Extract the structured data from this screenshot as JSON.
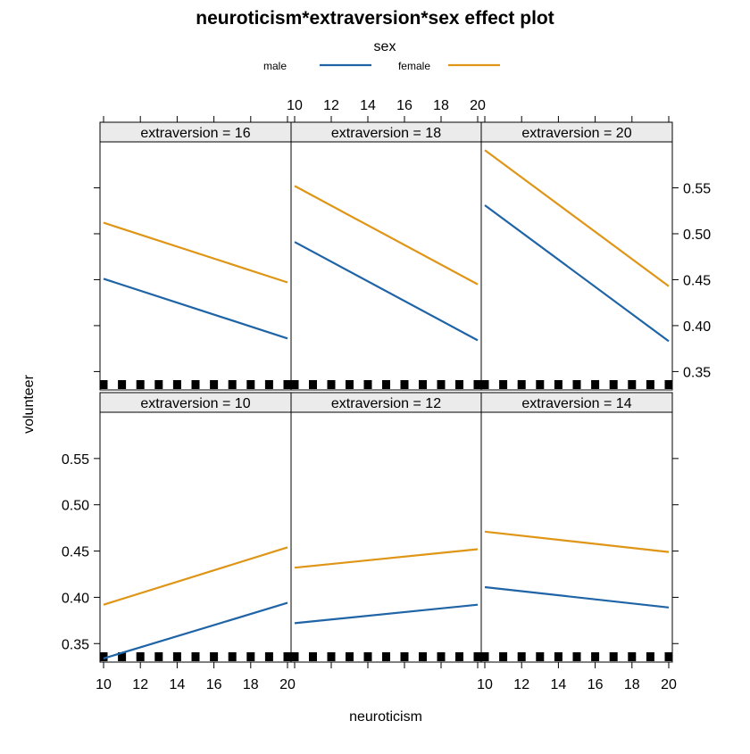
{
  "chart_data": {
    "type": "line",
    "title": "neuroticism*extraversion*sex effect plot",
    "xlabel": "neuroticism",
    "ylabel": "volunteer",
    "xlim": [
      10,
      20
    ],
    "ylim": [
      0.33,
      0.6
    ],
    "x_ticks": [
      10,
      12,
      14,
      16,
      18,
      20
    ],
    "x_tick_labels": [
      "10",
      "12",
      "14",
      "16",
      "18",
      "20"
    ],
    "y_ticks": [
      0.35,
      0.4,
      0.45,
      0.5,
      0.55
    ],
    "y_tick_labels": [
      "0.35",
      "0.40",
      "0.45",
      "0.50",
      "0.55"
    ],
    "legend": {
      "title": "sex",
      "placement": "top",
      "entries": [
        {
          "name": "male",
          "color": "#1f64a6"
        },
        {
          "name": "female",
          "color": "#df9516"
        }
      ]
    },
    "rug_x": [
      10,
      11,
      12,
      13,
      14,
      15,
      16,
      17,
      18,
      19,
      20
    ],
    "panels": [
      {
        "strip": "extraversion = 16",
        "row": 0,
        "col": 0,
        "series": [
          {
            "name": "male",
            "x": [
              10,
              20
            ],
            "y": [
              0.451,
              0.386
            ]
          },
          {
            "name": "female",
            "x": [
              10,
              20
            ],
            "y": [
              0.512,
              0.447
            ]
          }
        ]
      },
      {
        "strip": "extraversion = 18",
        "row": 0,
        "col": 1,
        "series": [
          {
            "name": "male",
            "x": [
              10,
              20
            ],
            "y": [
              0.491,
              0.384
            ]
          },
          {
            "name": "female",
            "x": [
              10,
              20
            ],
            "y": [
              0.552,
              0.445
            ]
          }
        ]
      },
      {
        "strip": "extraversion = 20",
        "row": 0,
        "col": 2,
        "series": [
          {
            "name": "male",
            "x": [
              10,
              20
            ],
            "y": [
              0.531,
              0.383
            ]
          },
          {
            "name": "female",
            "x": [
              10,
              20
            ],
            "y": [
              0.591,
              0.443
            ]
          }
        ]
      },
      {
        "strip": "extraversion = 10",
        "row": 1,
        "col": 0,
        "series": [
          {
            "name": "male",
            "x": [
              10,
              20
            ],
            "y": [
              0.334,
              0.394
            ]
          },
          {
            "name": "female",
            "x": [
              10,
              20
            ],
            "y": [
              0.392,
              0.454
            ]
          }
        ]
      },
      {
        "strip": "extraversion = 12",
        "row": 1,
        "col": 1,
        "series": [
          {
            "name": "male",
            "x": [
              10,
              20
            ],
            "y": [
              0.372,
              0.392
            ]
          },
          {
            "name": "female",
            "x": [
              10,
              20
            ],
            "y": [
              0.432,
              0.452
            ]
          }
        ]
      },
      {
        "strip": "extraversion = 14",
        "row": 1,
        "col": 2,
        "series": [
          {
            "name": "male",
            "x": [
              10,
              20
            ],
            "y": [
              0.411,
              0.389
            ]
          },
          {
            "name": "female",
            "x": [
              10,
              20
            ],
            "y": [
              0.471,
              0.449
            ]
          }
        ]
      }
    ]
  }
}
